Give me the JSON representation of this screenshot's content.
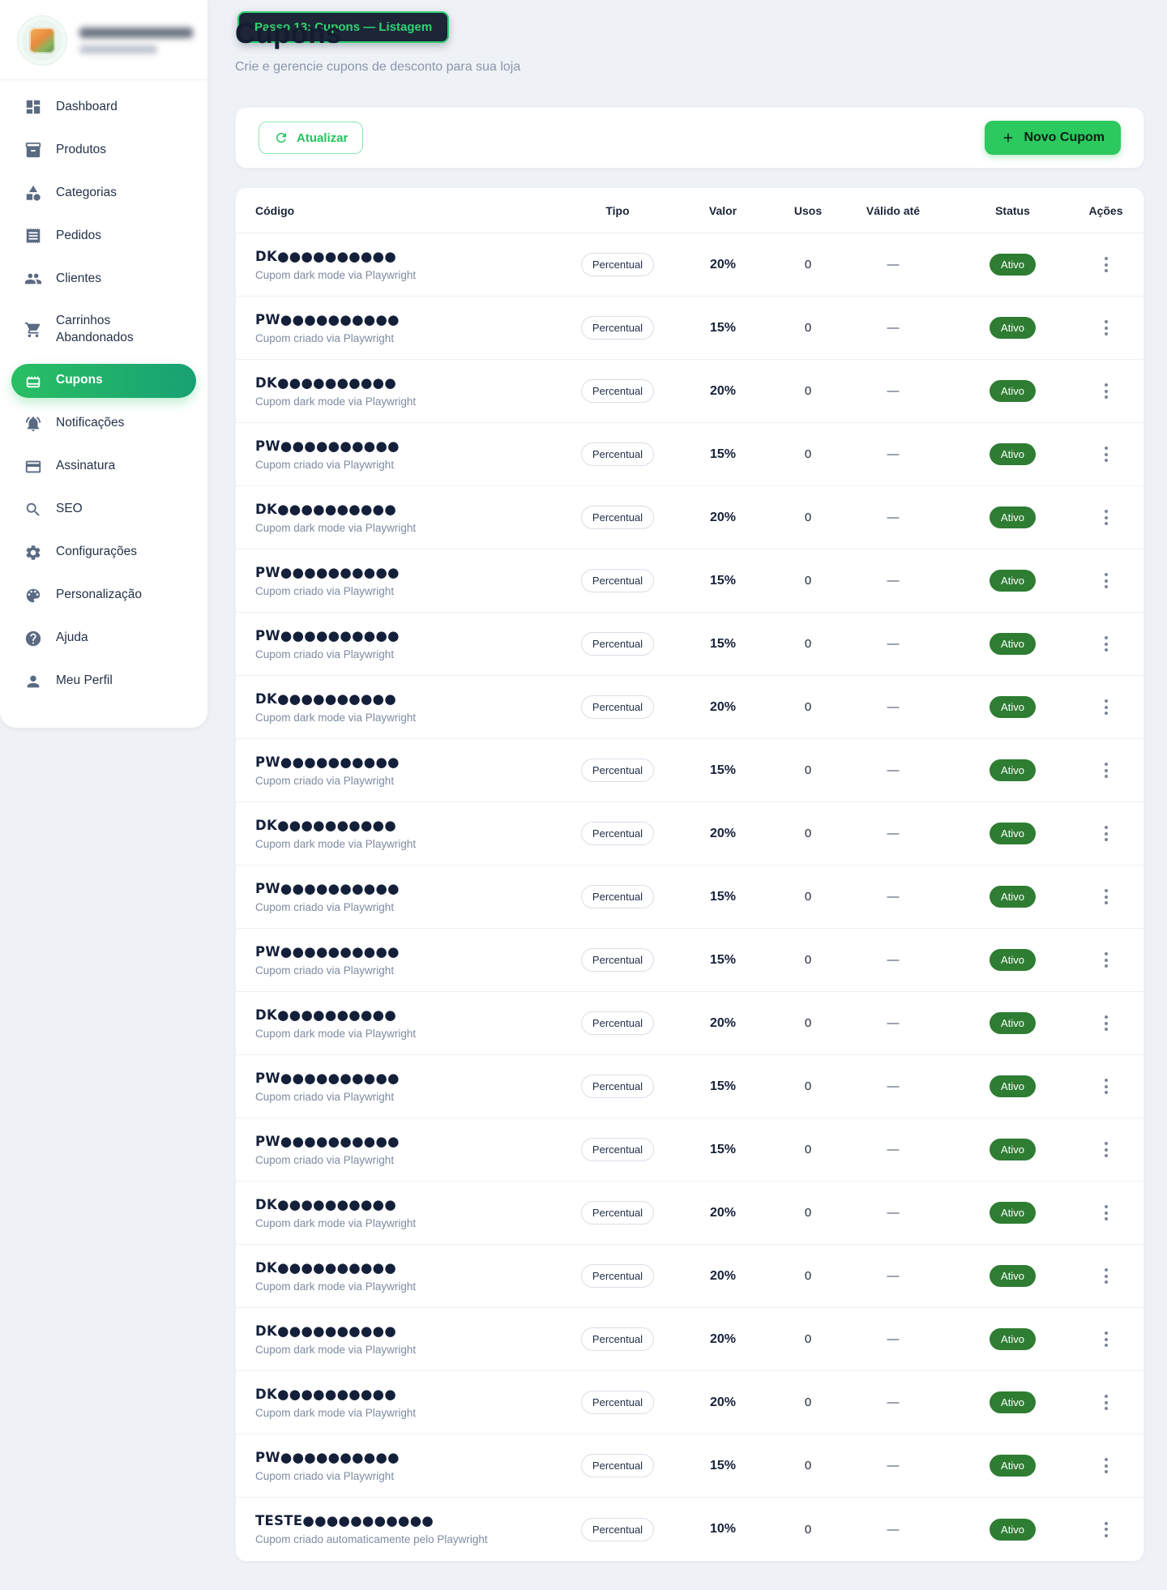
{
  "page": {
    "title": "Cupons",
    "subtitle": "Crie e gerencie cupons de desconto para sua loja"
  },
  "step_badge": {
    "label": "Passo 13: Cupons — Listagem"
  },
  "toolbar": {
    "refresh_label": "Atualizar",
    "new_coupon_label": "Novo Cupom"
  },
  "sidebar": {
    "items": [
      {
        "label": "Dashboard",
        "icon": "dashboard-icon",
        "active": false
      },
      {
        "label": "Produtos",
        "icon": "products-box-icon",
        "active": false
      },
      {
        "label": "Categorias",
        "icon": "category-icon",
        "active": false
      },
      {
        "label": "Pedidos",
        "icon": "receipt-icon",
        "active": false
      },
      {
        "label": "Clientes",
        "icon": "people-icon",
        "active": false
      },
      {
        "label": "Carrinhos Abandonados",
        "icon": "cart-icon",
        "active": false
      },
      {
        "label": "Cupons",
        "icon": "coupon-icon",
        "active": true
      },
      {
        "label": "Notificações",
        "icon": "bell-icon",
        "active": false
      },
      {
        "label": "Assinatura",
        "icon": "credit-card-icon",
        "active": false
      },
      {
        "label": "SEO",
        "icon": "search-icon",
        "active": false
      },
      {
        "label": "Configurações",
        "icon": "gear-icon",
        "active": false
      },
      {
        "label": "Personalização",
        "icon": "palette-icon",
        "active": false
      },
      {
        "label": "Ajuda",
        "icon": "help-icon",
        "active": false
      },
      {
        "label": "Meu Perfil",
        "icon": "person-icon",
        "active": false
      }
    ]
  },
  "table": {
    "headers": [
      "Código",
      "Tipo",
      "Valor",
      "Usos",
      "Válido até",
      "Status",
      "Ações"
    ],
    "rows": [
      {
        "code": "DK●●●●●●●●●●",
        "description": "Cupom dark mode via Playwright",
        "type": "Percentual",
        "value": "20%",
        "uses": "0",
        "valid_until": "—",
        "status": "Ativo"
      },
      {
        "code": "PW●●●●●●●●●●",
        "description": "Cupom criado via Playwright",
        "type": "Percentual",
        "value": "15%",
        "uses": "0",
        "valid_until": "—",
        "status": "Ativo"
      },
      {
        "code": "DK●●●●●●●●●●",
        "description": "Cupom dark mode via Playwright",
        "type": "Percentual",
        "value": "20%",
        "uses": "0",
        "valid_until": "—",
        "status": "Ativo"
      },
      {
        "code": "PW●●●●●●●●●●",
        "description": "Cupom criado via Playwright",
        "type": "Percentual",
        "value": "15%",
        "uses": "0",
        "valid_until": "—",
        "status": "Ativo"
      },
      {
        "code": "DK●●●●●●●●●●",
        "description": "Cupom dark mode via Playwright",
        "type": "Percentual",
        "value": "20%",
        "uses": "0",
        "valid_until": "—",
        "status": "Ativo"
      },
      {
        "code": "PW●●●●●●●●●●",
        "description": "Cupom criado via Playwright",
        "type": "Percentual",
        "value": "15%",
        "uses": "0",
        "valid_until": "—",
        "status": "Ativo"
      },
      {
        "code": "PW●●●●●●●●●●",
        "description": "Cupom criado via Playwright",
        "type": "Percentual",
        "value": "15%",
        "uses": "0",
        "valid_until": "—",
        "status": "Ativo"
      },
      {
        "code": "DK●●●●●●●●●●",
        "description": "Cupom dark mode via Playwright",
        "type": "Percentual",
        "value": "20%",
        "uses": "0",
        "valid_until": "—",
        "status": "Ativo"
      },
      {
        "code": "PW●●●●●●●●●●",
        "description": "Cupom criado via Playwright",
        "type": "Percentual",
        "value": "15%",
        "uses": "0",
        "valid_until": "—",
        "status": "Ativo"
      },
      {
        "code": "DK●●●●●●●●●●",
        "description": "Cupom dark mode via Playwright",
        "type": "Percentual",
        "value": "20%",
        "uses": "0",
        "valid_until": "—",
        "status": "Ativo"
      },
      {
        "code": "PW●●●●●●●●●●",
        "description": "Cupom criado via Playwright",
        "type": "Percentual",
        "value": "15%",
        "uses": "0",
        "valid_until": "—",
        "status": "Ativo"
      },
      {
        "code": "PW●●●●●●●●●●",
        "description": "Cupom criado via Playwright",
        "type": "Percentual",
        "value": "15%",
        "uses": "0",
        "valid_until": "—",
        "status": "Ativo"
      },
      {
        "code": "DK●●●●●●●●●●",
        "description": "Cupom dark mode via Playwright",
        "type": "Percentual",
        "value": "20%",
        "uses": "0",
        "valid_until": "—",
        "status": "Ativo"
      },
      {
        "code": "PW●●●●●●●●●●",
        "description": "Cupom criado via Playwright",
        "type": "Percentual",
        "value": "15%",
        "uses": "0",
        "valid_until": "—",
        "status": "Ativo"
      },
      {
        "code": "PW●●●●●●●●●●",
        "description": "Cupom criado via Playwright",
        "type": "Percentual",
        "value": "15%",
        "uses": "0",
        "valid_until": "—",
        "status": "Ativo"
      },
      {
        "code": "DK●●●●●●●●●●",
        "description": "Cupom dark mode via Playwright",
        "type": "Percentual",
        "value": "20%",
        "uses": "0",
        "valid_until": "—",
        "status": "Ativo"
      },
      {
        "code": "DK●●●●●●●●●●",
        "description": "Cupom dark mode via Playwright",
        "type": "Percentual",
        "value": "20%",
        "uses": "0",
        "valid_until": "—",
        "status": "Ativo"
      },
      {
        "code": "DK●●●●●●●●●●",
        "description": "Cupom dark mode via Playwright",
        "type": "Percentual",
        "value": "20%",
        "uses": "0",
        "valid_until": "—",
        "status": "Ativo"
      },
      {
        "code": "DK●●●●●●●●●●",
        "description": "Cupom dark mode via Playwright",
        "type": "Percentual",
        "value": "20%",
        "uses": "0",
        "valid_until": "—",
        "status": "Ativo"
      },
      {
        "code": "PW●●●●●●●●●●",
        "description": "Cupom criado via Playwright",
        "type": "Percentual",
        "value": "15%",
        "uses": "0",
        "valid_until": "—",
        "status": "Ativo"
      },
      {
        "code": "TESTE●●●●●●●●●●●",
        "description": "Cupom criado automaticamente pelo Playwright",
        "type": "Percentual",
        "value": "10%",
        "uses": "0",
        "valid_until": "—",
        "status": "Ativo"
      }
    ]
  },
  "colors": {
    "accent_green": "#22c55e",
    "active_gradient_start": "#29bf63",
    "active_gradient_end": "#18a174",
    "status_active_bg": "#2e7d32",
    "badge_bg": "#1c2637",
    "badge_text": "#2fd36f",
    "page_bg": "#eef1f6",
    "title_color": "#131c31"
  }
}
